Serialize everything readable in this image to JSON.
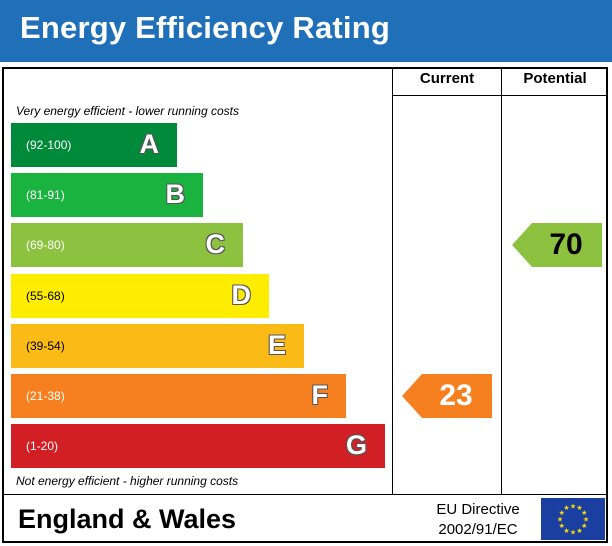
{
  "header": {
    "title": "Energy Efficiency Rating"
  },
  "columns": {
    "current": "Current",
    "potential": "Potential"
  },
  "notes": {
    "top": "Very energy efficient - lower running costs",
    "bottom": "Not energy efficient - higher running costs"
  },
  "chart_data": {
    "type": "bar",
    "title": "Energy Efficiency Rating",
    "bands": [
      {
        "letter": "A",
        "range": "(92-100)",
        "color": "#008a3a"
      },
      {
        "letter": "B",
        "range": "(81-91)",
        "color": "#1bb33f"
      },
      {
        "letter": "C",
        "range": "(69-80)",
        "color": "#8cc23f"
      },
      {
        "letter": "D",
        "range": "(55-68)",
        "color": "#ffed00"
      },
      {
        "letter": "E",
        "range": "(39-54)",
        "color": "#fbbb17"
      },
      {
        "letter": "F",
        "range": "(21-38)",
        "color": "#f6801f"
      },
      {
        "letter": "G",
        "range": "(1-20)",
        "color": "#d11f25"
      }
    ],
    "current": {
      "value": "23",
      "band": "F",
      "color": "#f6801f"
    },
    "potential": {
      "value": "70",
      "band": "C",
      "color": "#8cc23f"
    }
  },
  "footer": {
    "region": "England & Wales",
    "directive_line1": "EU Directive",
    "directive_line2": "2002/91/EC"
  },
  "icons": {
    "flag": "eu-flag-icon"
  },
  "colors": {
    "header_bg": "#1f6fb9",
    "flag_bg": "#1a3fa0",
    "flag_stars": "#ffdd00"
  }
}
